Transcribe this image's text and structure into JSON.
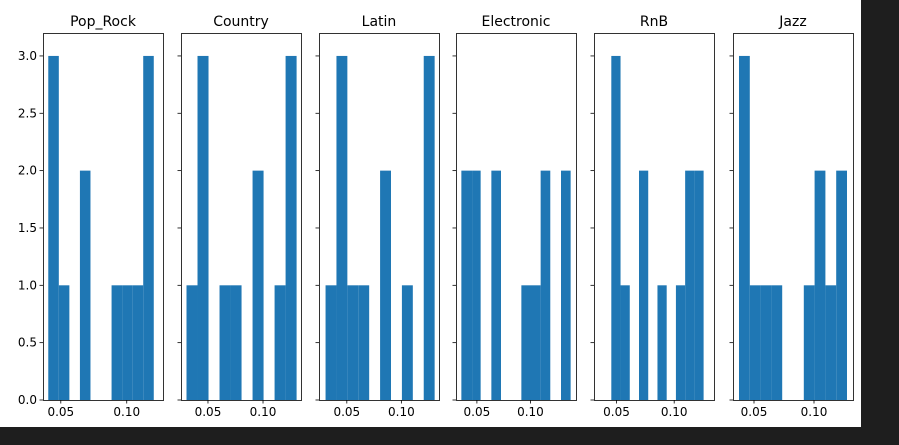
{
  "chart_data": {
    "type": "bar",
    "subtype": "histogram-small-multiples",
    "ylim": [
      0,
      3.2
    ],
    "yticks": [
      0.0,
      0.5,
      1.0,
      1.5,
      2.0,
      2.5,
      3.0
    ],
    "ytick_labels": [
      "0.0",
      "0.5",
      "1.0",
      "1.5",
      "2.0",
      "2.5",
      "3.0"
    ],
    "xticks": [
      0.05,
      0.1
    ],
    "xtick_labels": [
      "0.05",
      "0.10"
    ],
    "bar_color": "#1f77b4",
    "grid": false,
    "legend": "none",
    "panels": [
      {
        "title": "Pop_Rock",
        "xlim": [
          0.0365,
          0.1275
        ],
        "bins": [
          {
            "x0": 0.0405,
            "x1": 0.0485,
            "count": 3
          },
          {
            "x0": 0.0485,
            "x1": 0.0565,
            "count": 1
          },
          {
            "x0": 0.0645,
            "x1": 0.0725,
            "count": 2
          },
          {
            "x0": 0.0885,
            "x1": 0.0965,
            "count": 1
          },
          {
            "x0": 0.0965,
            "x1": 0.1045,
            "count": 1
          },
          {
            "x0": 0.1045,
            "x1": 0.1125,
            "count": 1
          },
          {
            "x0": 0.1125,
            "x1": 0.1205,
            "count": 3
          }
        ]
      },
      {
        "title": "Country",
        "xlim": [
          0.0255,
          0.1345
        ],
        "bins": [
          {
            "x0": 0.0305,
            "x1": 0.0405,
            "count": 1
          },
          {
            "x0": 0.0405,
            "x1": 0.0505,
            "count": 3
          },
          {
            "x0": 0.0605,
            "x1": 0.0705,
            "count": 1
          },
          {
            "x0": 0.0705,
            "x1": 0.0805,
            "count": 1
          },
          {
            "x0": 0.0905,
            "x1": 0.1005,
            "count": 2
          },
          {
            "x0": 0.1105,
            "x1": 0.1205,
            "count": 1
          },
          {
            "x0": 0.1205,
            "x1": 0.1305,
            "count": 3
          }
        ]
      },
      {
        "title": "Latin",
        "xlim": [
          0.0245,
          0.1345
        ],
        "bins": [
          {
            "x0": 0.0305,
            "x1": 0.0405,
            "count": 1
          },
          {
            "x0": 0.0405,
            "x1": 0.0505,
            "count": 3
          },
          {
            "x0": 0.0505,
            "x1": 0.0605,
            "count": 1
          },
          {
            "x0": 0.0605,
            "x1": 0.0705,
            "count": 1
          },
          {
            "x0": 0.0805,
            "x1": 0.0905,
            "count": 2
          },
          {
            "x0": 0.1005,
            "x1": 0.1105,
            "count": 1
          },
          {
            "x0": 0.1205,
            "x1": 0.1305,
            "count": 3
          }
        ]
      },
      {
        "title": "Electronic",
        "xlim": [
          0.0305,
          0.1425
        ],
        "bins": [
          {
            "x0": 0.0355,
            "x1": 0.0455,
            "count": 2
          },
          {
            "x0": 0.0455,
            "x1": 0.0535,
            "count": 2
          },
          {
            "x0": 0.0635,
            "x1": 0.0725,
            "count": 2
          },
          {
            "x0": 0.0915,
            "x1": 0.1005,
            "count": 1
          },
          {
            "x0": 0.1005,
            "x1": 0.1095,
            "count": 1
          },
          {
            "x0": 0.1095,
            "x1": 0.1185,
            "count": 2
          },
          {
            "x0": 0.1285,
            "x1": 0.1375,
            "count": 2
          }
        ]
      },
      {
        "title": "RnB",
        "xlim": [
          0.0305,
          0.1345
        ],
        "bins": [
          {
            "x0": 0.0455,
            "x1": 0.0535,
            "count": 3
          },
          {
            "x0": 0.0535,
            "x1": 0.0615,
            "count": 1
          },
          {
            "x0": 0.0695,
            "x1": 0.0775,
            "count": 2
          },
          {
            "x0": 0.0855,
            "x1": 0.0935,
            "count": 1
          },
          {
            "x0": 0.1015,
            "x1": 0.1095,
            "count": 1
          },
          {
            "x0": 0.1095,
            "x1": 0.1175,
            "count": 2
          },
          {
            "x0": 0.1175,
            "x1": 0.1255,
            "count": 2
          }
        ]
      },
      {
        "title": "Jazz",
        "xlim": [
          0.0325,
          0.1325
        ],
        "bins": [
          {
            "x0": 0.0375,
            "x1": 0.0465,
            "count": 3
          },
          {
            "x0": 0.0465,
            "x1": 0.0555,
            "count": 1
          },
          {
            "x0": 0.0555,
            "x1": 0.0645,
            "count": 1
          },
          {
            "x0": 0.0645,
            "x1": 0.0735,
            "count": 1
          },
          {
            "x0": 0.0915,
            "x1": 0.1005,
            "count": 1
          },
          {
            "x0": 0.1005,
            "x1": 0.1095,
            "count": 2
          },
          {
            "x0": 0.1095,
            "x1": 0.1185,
            "count": 1
          },
          {
            "x0": 0.1185,
            "x1": 0.1275,
            "count": 2
          }
        ]
      }
    ]
  }
}
